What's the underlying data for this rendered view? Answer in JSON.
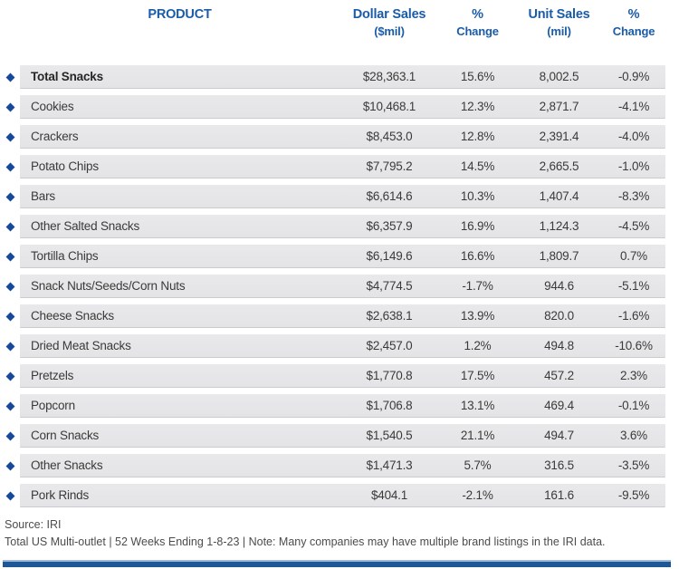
{
  "table": {
    "headers": [
      {
        "label": "PRODUCT",
        "sub": ""
      },
      {
        "label": "Dollar Sales",
        "sub": "($mil)"
      },
      {
        "label": "%",
        "sub": "Change"
      },
      {
        "label": "Unit Sales",
        "sub": "(mil)"
      },
      {
        "label": "%",
        "sub": "Change"
      }
    ],
    "rows": [
      {
        "product": "Total Snacks",
        "dollar_sales": "$28,363.1",
        "dollar_change": "15.6%",
        "unit_sales": "8,002.5",
        "unit_change": "-0.9%",
        "bold": true
      },
      {
        "product": "Cookies",
        "dollar_sales": "$10,468.1",
        "dollar_change": "12.3%",
        "unit_sales": "2,871.7",
        "unit_change": "-4.1%",
        "bold": false
      },
      {
        "product": "Crackers",
        "dollar_sales": "$8,453.0",
        "dollar_change": "12.8%",
        "unit_sales": "2,391.4",
        "unit_change": "-4.0%",
        "bold": false
      },
      {
        "product": "Potato Chips",
        "dollar_sales": "$7,795.2",
        "dollar_change": "14.5%",
        "unit_sales": "2,665.5",
        "unit_change": "-1.0%",
        "bold": false
      },
      {
        "product": "Bars",
        "dollar_sales": "$6,614.6",
        "dollar_change": "10.3%",
        "unit_sales": "1,407.4",
        "unit_change": "-8.3%",
        "bold": false
      },
      {
        "product": "Other Salted Snacks",
        "dollar_sales": "$6,357.9",
        "dollar_change": "16.9%",
        "unit_sales": "1,124.3",
        "unit_change": "-4.5%",
        "bold": false
      },
      {
        "product": "Tortilla Chips",
        "dollar_sales": "$6,149.6",
        "dollar_change": "16.6%",
        "unit_sales": "1,809.7",
        "unit_change": "0.7%",
        "bold": false
      },
      {
        "product": "Snack Nuts/Seeds/Corn Nuts",
        "dollar_sales": "$4,774.5",
        "dollar_change": "-1.7%",
        "unit_sales": "944.6",
        "unit_change": "-5.1%",
        "bold": false
      },
      {
        "product": "Cheese Snacks",
        "dollar_sales": "$2,638.1",
        "dollar_change": "13.9%",
        "unit_sales": "820.0",
        "unit_change": "-1.6%",
        "bold": false
      },
      {
        "product": "Dried Meat Snacks",
        "dollar_sales": "$2,457.0",
        "dollar_change": "1.2%",
        "unit_sales": "494.8",
        "unit_change": "-10.6%",
        "bold": false
      },
      {
        "product": "Pretzels",
        "dollar_sales": "$1,770.8",
        "dollar_change": "17.5%",
        "unit_sales": "457.2",
        "unit_change": "2.3%",
        "bold": false
      },
      {
        "product": "Popcorn",
        "dollar_sales": "$1,706.8",
        "dollar_change": "13.1%",
        "unit_sales": "469.4",
        "unit_change": "-0.1%",
        "bold": false
      },
      {
        "product": "Corn Snacks",
        "dollar_sales": "$1,540.5",
        "dollar_change": "21.1%",
        "unit_sales": "494.7",
        "unit_change": "3.6%",
        "bold": false
      },
      {
        "product": "Other Snacks",
        "dollar_sales": "$1,471.3",
        "dollar_change": "5.7%",
        "unit_sales": "316.5",
        "unit_change": "-3.5%",
        "bold": false
      },
      {
        "product": "Pork Rinds",
        "dollar_sales": "$404.1",
        "dollar_change": "-2.1%",
        "unit_sales": "161.6",
        "unit_change": "-9.5%",
        "bold": false
      }
    ]
  },
  "footer": {
    "source": "Source: IRI",
    "note": "Total US Multi-outlet | 52 Weeks Ending 1-8-23 | Note: Many companies may have multiple brand listings in the IRI data."
  },
  "colors": {
    "header_blue": "#1b5ca8",
    "diamond_blue": "#17499b",
    "band_gray": "#e7e7e9",
    "band_border": "#cbcbcf",
    "row_text": "#3a3a3a",
    "footer_text": "#4c4c4c",
    "bottom_bar_blue": "#1d5795",
    "bottom_bar_highlight": "#9cb9d6"
  },
  "chart_data": {
    "type": "table",
    "title": "Snack Sales by Product",
    "columns": [
      "PRODUCT",
      "Dollar Sales ($mil)",
      "% Change",
      "Unit Sales (mil)",
      "% Change"
    ],
    "rows": [
      [
        "Total Snacks",
        28363.1,
        15.6,
        8002.5,
        -0.9
      ],
      [
        "Cookies",
        10468.1,
        12.3,
        2871.7,
        -4.1
      ],
      [
        "Crackers",
        8453.0,
        12.8,
        2391.4,
        -4.0
      ],
      [
        "Potato Chips",
        7795.2,
        14.5,
        2665.5,
        -1.0
      ],
      [
        "Bars",
        6614.6,
        10.3,
        1407.4,
        -8.3
      ],
      [
        "Other Salted Snacks",
        6357.9,
        16.9,
        1124.3,
        -4.5
      ],
      [
        "Tortilla Chips",
        6149.6,
        16.6,
        1809.7,
        0.7
      ],
      [
        "Snack Nuts/Seeds/Corn Nuts",
        4774.5,
        -1.7,
        944.6,
        -5.1
      ],
      [
        "Cheese Snacks",
        2638.1,
        13.9,
        820.0,
        -1.6
      ],
      [
        "Dried Meat Snacks",
        2457.0,
        1.2,
        494.8,
        -10.6
      ],
      [
        "Pretzels",
        1770.8,
        17.5,
        457.2,
        2.3
      ],
      [
        "Popcorn",
        1706.8,
        13.1,
        469.4,
        -0.1
      ],
      [
        "Corn Snacks",
        1540.5,
        21.1,
        494.7,
        3.6
      ],
      [
        "Other Snacks",
        1471.3,
        5.7,
        316.5,
        -3.5
      ],
      [
        "Pork Rinds",
        404.1,
        -2.1,
        161.6,
        -9.5
      ]
    ],
    "source": "IRI",
    "period": "52 Weeks Ending 1-8-23",
    "scope": "Total US Multi-outlet"
  }
}
